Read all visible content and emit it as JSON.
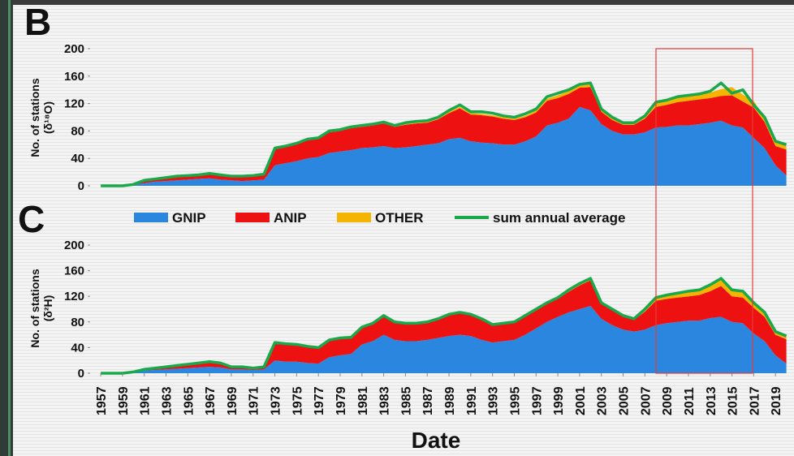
{
  "chart_data": {
    "type": "area",
    "xlabel": "Date",
    "xlim": [
      1956.1,
      2020.7
    ],
    "xticks": [
      1957,
      1959,
      1961,
      1963,
      1965,
      1967,
      1969,
      1971,
      1973,
      1975,
      1977,
      1979,
      1981,
      1983,
      1985,
      1987,
      1989,
      1991,
      1993,
      1995,
      1997,
      1999,
      2001,
      2003,
      2005,
      2007,
      2009,
      2011,
      2013,
      2015,
      2017,
      2019
    ],
    "x": [
      1957,
      1958,
      1959,
      1960,
      1961,
      1962,
      1963,
      1964,
      1965,
      1966,
      1967,
      1968,
      1969,
      1970,
      1971,
      1972,
      1973,
      1974,
      1975,
      1976,
      1977,
      1978,
      1979,
      1980,
      1981,
      1982,
      1983,
      1984,
      1985,
      1986,
      1987,
      1988,
      1989,
      1990,
      1991,
      1992,
      1993,
      1994,
      1995,
      1996,
      1997,
      1998,
      1999,
      2000,
      2001,
      2002,
      2003,
      2004,
      2005,
      2006,
      2007,
      2008,
      2009,
      2010,
      2011,
      2012,
      2013,
      2014,
      2015,
      2016,
      2017,
      2018,
      2019,
      2020
    ],
    "legend": [
      {
        "name": "GNIP",
        "color": "#2b86e0"
      },
      {
        "name": "ANIP",
        "color": "#ee1111"
      },
      {
        "name": "OTHER",
        "color": "#f5b400"
      },
      {
        "name": "sum annual average",
        "color": "#1aa84a"
      }
    ],
    "panels": [
      {
        "label": "B",
        "ylabel": [
          "No. of stations",
          "(δ¹⁸O)"
        ],
        "ylim": [
          0,
          200
        ],
        "yticks": [
          0,
          40,
          80,
          120,
          160,
          200
        ],
        "series": [
          {
            "values": [
              0,
              0,
              0,
              1,
              4,
              6,
              7,
              8,
              9,
              10,
              11,
              9,
              8,
              7,
              8,
              9,
              30,
              33,
              36,
              40,
              42,
              48,
              50,
              52,
              55,
              56,
              58,
              55,
              56,
              58,
              60,
              62,
              68,
              70,
              65,
              63,
              62,
              60,
              60,
              65,
              72,
              88,
              92,
              98,
              115,
              110,
              90,
              80,
              75,
              75,
              78,
              85,
              86,
              88,
              88,
              90,
              92,
              95,
              88,
              85,
              70,
              55,
              30,
              15
            ]
          },
          {
            "values": [
              0,
              0,
              0,
              1,
              3,
              3,
              4,
              5,
              5,
              5,
              6,
              6,
              5,
              6,
              6,
              7,
              24,
              24,
              25,
              27,
              27,
              30,
              30,
              32,
              31,
              32,
              33,
              31,
              33,
              33,
              32,
              35,
              38,
              43,
              39,
              40,
              39,
              38,
              36,
              35,
              35,
              36,
              36,
              36,
              28,
              34,
              18,
              16,
              14,
              14,
              20,
              30,
              32,
              34,
              36,
              36,
              36,
              36,
              44,
              38,
              44,
              38,
              28,
              38
            ]
          },
          {
            "values": [
              0,
              0,
              0,
              0,
              0,
              0,
              0,
              0,
              0,
              0,
              0,
              0,
              0,
              0,
              0,
              0,
              0,
              0,
              0,
              0,
              0,
              1,
              1,
              1,
              1,
              1,
              1,
              1,
              1,
              1,
              1,
              1,
              2,
              2,
              2,
              2,
              2,
              2,
              2,
              2,
              3,
              3,
              4,
              4,
              4,
              5,
              4,
              3,
              2,
              2,
              3,
              5,
              6,
              7,
              7,
              7,
              8,
              10,
              12,
              10,
              10,
              6,
              5,
              5
            ]
          },
          {
            "values": [
              0,
              0,
              0,
              2,
              8,
              10,
              12,
              14,
              15,
              16,
              18,
              16,
              14,
              14,
              15,
              17,
              55,
              58,
              62,
              68,
              70,
              80,
              82,
              86,
              88,
              90,
              93,
              88,
              92,
              94,
              95,
              100,
              110,
              118,
              108,
              108,
              106,
              102,
              100,
              105,
              112,
              130,
              135,
              140,
              148,
              150,
              112,
              100,
              92,
              92,
              102,
              122,
              125,
              130,
              132,
              134,
              138,
              150,
              135,
              140,
              118,
              100,
              65,
              60
            ]
          }
        ]
      },
      {
        "label": "C",
        "ylabel": [
          "No. of stations",
          "(δ²H)"
        ],
        "ylim": [
          0,
          200
        ],
        "yticks": [
          0,
          40,
          80,
          120,
          160,
          200
        ],
        "series": [
          {
            "values": [
              0,
              0,
              0,
              1,
              4,
              5,
              6,
              7,
              8,
              9,
              10,
              9,
              6,
              6,
              5,
              6,
              20,
              18,
              18,
              16,
              15,
              25,
              28,
              30,
              45,
              50,
              60,
              52,
              50,
              50,
              52,
              55,
              58,
              60,
              58,
              52,
              48,
              50,
              52,
              60,
              70,
              80,
              88,
              95,
              100,
              105,
              85,
              75,
              68,
              65,
              68,
              75,
              78,
              80,
              82,
              82,
              86,
              88,
              80,
              78,
              62,
              50,
              28,
              15
            ]
          },
          {
            "values": [
              0,
              0,
              0,
              1,
              2,
              3,
              4,
              5,
              6,
              7,
              8,
              7,
              4,
              4,
              3,
              4,
              28,
              28,
              27,
              26,
              25,
              27,
              27,
              26,
              27,
              28,
              30,
              28,
              28,
              28,
              28,
              30,
              33,
              34,
              33,
              32,
              27,
              27,
              27,
              29,
              29,
              29,
              28,
              32,
              37,
              40,
              23,
              23,
              20,
              18,
              28,
              38,
              38,
              38,
              38,
              40,
              42,
              48,
              40,
              40,
              40,
              38,
              32,
              38
            ]
          },
          {
            "values": [
              0,
              0,
              0,
              0,
              0,
              0,
              0,
              0,
              0,
              0,
              0,
              0,
              0,
              0,
              0,
              0,
              0,
              0,
              0,
              0,
              0,
              0,
              0,
              0,
              0,
              0,
              0,
              0,
              0,
              0,
              0,
              0,
              1,
              1,
              1,
              1,
              1,
              1,
              1,
              1,
              1,
              1,
              2,
              3,
              3,
              3,
              2,
              2,
              2,
              2,
              4,
              5,
              6,
              7,
              8,
              8,
              10,
              12,
              10,
              10,
              8,
              7,
              5,
              5
            ]
          },
          {
            "values": [
              0,
              0,
              0,
              2,
              6,
              8,
              10,
              12,
              14,
              16,
              18,
              16,
              10,
              10,
              8,
              10,
              48,
              46,
              45,
              42,
              40,
              52,
              55,
              56,
              72,
              78,
              90,
              80,
              78,
              78,
              80,
              85,
              92,
              95,
              92,
              85,
              76,
              78,
              80,
              90,
              100,
              110,
              118,
              130,
              140,
              148,
              110,
              100,
              90,
              85,
              100,
              118,
              122,
              125,
              128,
              130,
              138,
              148,
              130,
              128,
              110,
              95,
              65,
              58
            ]
          }
        ]
      }
    ]
  }
}
